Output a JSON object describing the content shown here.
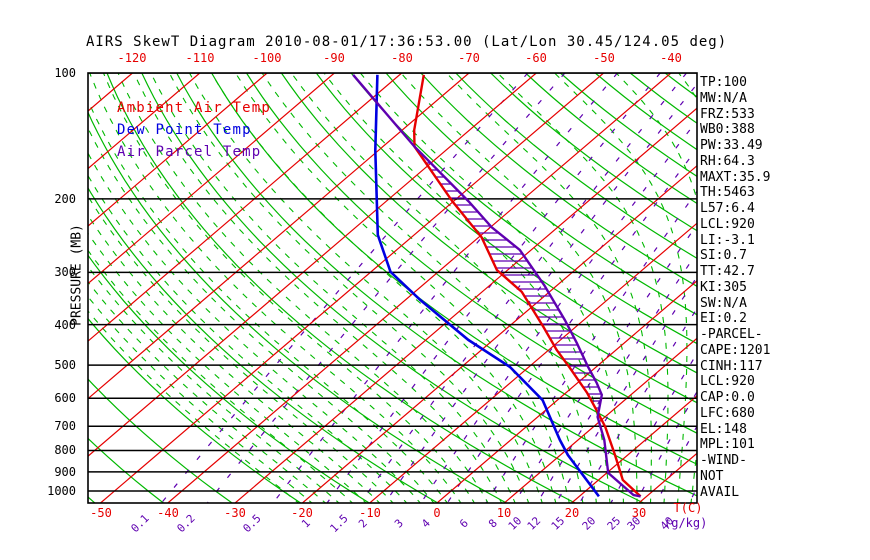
{
  "title": "AIRS SkewT Diagram 2010-08-01/17:36:53.00 (Lat/Lon 30.45/124.05 deg)",
  "colors": {
    "isotherm_red": "#e60000",
    "adiabat_green": "#00b800",
    "dewpoint_blue": "#0000e0",
    "parcel_purple": "#5f00b0",
    "black": "#000000"
  },
  "legend": {
    "items": [
      {
        "label": "Ambient Air Temp",
        "color": "isotherm_red"
      },
      {
        "label": "Dew Point Temp",
        "color": "dewpoint_blue"
      },
      {
        "label": "Air Parcel Temp",
        "color": "parcel_purple"
      }
    ]
  },
  "axes": {
    "left": {
      "label": "PRESSURE (MB)",
      "ticks": [
        100,
        200,
        300,
        400,
        500,
        600,
        700,
        800,
        900,
        1000
      ]
    },
    "top": {
      "ticks": [
        -120,
        -110,
        -100,
        -90,
        -80,
        -70,
        -60,
        -50,
        -40
      ]
    },
    "bottom": {
      "temp_ticks": [
        -50,
        -40,
        -30,
        -20,
        -10,
        0,
        10,
        20,
        30
      ],
      "temp_unit": "T(C)",
      "mixing_unit": "(g/kg)"
    }
  },
  "side_panel": {
    "items": [
      "TP:100",
      "MW:N/A",
      "FRZ:533",
      "WB0:388",
      "PW:33.49",
      "RH:64.3",
      "MAXT:35.9",
      "TH:5463",
      "L57:6.4",
      "LCL:920",
      "LI:-3.1",
      "SI:0.7",
      "TT:42.7",
      "KI:305",
      "SW:N/A",
      "EI:0.2",
      "-PARCEL-",
      "CAPE:1201",
      "CINH:117",
      "LCL:920",
      "CAP:0.0",
      "LFC:680",
      "EL:148",
      "MPL:101",
      "-WIND-",
      "NOT",
      "AVAIL"
    ]
  },
  "chart_data": {
    "type": "line",
    "title": "AIRS SkewT Diagram 2010-08-01/17:36:53.00 (Lat/Lon 30.45/124.05 deg)",
    "x_axis": "Temperature (C), skewed 45 deg",
    "y_axis": "Pressure (MB), log scale",
    "xlim_at_surface_c": [
      -52,
      40
    ],
    "ylim_mb": [
      100,
      1050
    ],
    "grid": {
      "isotherms_c": {
        "min": -130,
        "max": 40,
        "step": 10
      },
      "dry_adiabats_theta_c": {
        "min": -75,
        "max": 215,
        "step": 10
      },
      "moist_adiabats_start_c": {
        "min": -20,
        "max": 40,
        "step": 2
      },
      "mixing_ratio_g_kg": [
        0.1,
        0.2,
        0.5,
        1,
        1.5,
        2,
        3,
        4,
        6,
        8,
        10,
        12,
        15,
        20,
        25,
        30,
        40
      ]
    },
    "hatch_region": {
      "name": "CAPE",
      "between": [
        "Ambient Air Temp",
        "Air Parcel Temp"
      ],
      "from_mb": 152,
      "to_mb": 660
    },
    "series": [
      {
        "name": "Ambient Air Temp",
        "color": "isotherm_red",
        "points_mb_c": [
          [
            101,
            -76.4
          ],
          [
            137,
            -68.2
          ],
          [
            150,
            -65.3
          ],
          [
            203,
            -50.1
          ],
          [
            247,
            -39.6
          ],
          [
            296,
            -31.6
          ],
          [
            334,
            -24.1
          ],
          [
            405,
            -14.8
          ],
          [
            460,
            -8.8
          ],
          [
            508,
            -3.7
          ],
          [
            583,
            3.2
          ],
          [
            651,
            8.3
          ],
          [
            703,
            11.8
          ],
          [
            820,
            18.1
          ],
          [
            941,
            23.6
          ],
          [
            1030,
            29.1
          ]
        ]
      },
      {
        "name": "Dew Point Temp",
        "color": "dewpoint_blue",
        "points_mb_c": [
          [
            101,
            -83.3
          ],
          [
            153,
            -70.5
          ],
          [
            244,
            -55.4
          ],
          [
            299,
            -47.1
          ],
          [
            349,
            -37.8
          ],
          [
            435,
            -23.7
          ],
          [
            505,
            -12.8
          ],
          [
            606,
            -2.2
          ],
          [
            755,
            7.3
          ],
          [
            820,
            11.1
          ],
          [
            1030,
            22.9
          ]
        ]
      },
      {
        "name": "Air Parcel Temp",
        "color": "parcel_purple",
        "points_mb_c": [
          [
            101,
            -86.9
          ],
          [
            150,
            -65.3
          ],
          [
            203,
            -47.7
          ],
          [
            234,
            -39.8
          ],
          [
            265,
            -31.7
          ],
          [
            322,
            -21.9
          ],
          [
            390,
            -12.8
          ],
          [
            443,
            -7.0
          ],
          [
            505,
            -1.2
          ],
          [
            552,
            2.9
          ],
          [
            589,
            5.7
          ],
          [
            665,
            8.9
          ],
          [
            755,
            13.9
          ],
          [
            905,
            20.2
          ],
          [
            1022,
            27.8
          ],
          [
            1030,
            29.1
          ]
        ]
      }
    ]
  }
}
